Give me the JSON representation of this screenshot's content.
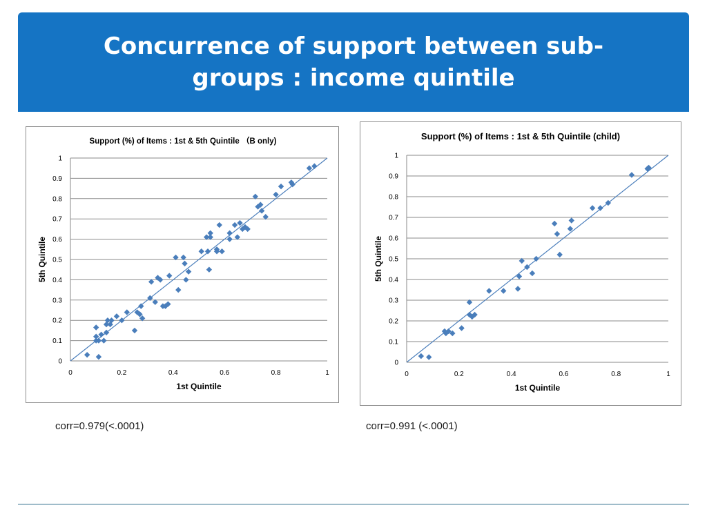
{
  "slide": {
    "title": "Concurrence of support between sub-groups : income quintile",
    "corr_left": "corr=0.979(<.0001)",
    "corr_right": "corr=0.991 (<.0001)"
  },
  "chart_data": [
    {
      "type": "scatter",
      "title": "Support (%) of Items : 1st & 5th Quintile （B only)",
      "xlabel": "1st Quintile",
      "ylabel": "5th Quintile",
      "xlim": [
        0,
        1
      ],
      "ylim": [
        0,
        1
      ],
      "x_ticks": [
        "0",
        "0.2",
        "0.4",
        "0.6",
        "0.8",
        "1"
      ],
      "y_ticks": [
        "0",
        "0.1",
        "0.2",
        "0.3",
        "0.4",
        "0.5",
        "0.6",
        "0.7",
        "0.8",
        "0.9",
        "1"
      ],
      "grid": true,
      "diagonal_line": true,
      "series": [
        {
          "points": [
            [
              0.065,
              0.03
            ],
            [
              0.1,
              0.1
            ],
            [
              0.11,
              0.1
            ],
            [
              0.12,
              0.13
            ],
            [
              0.13,
              0.1
            ],
            [
              0.1,
              0.12
            ],
            [
              0.1,
              0.165
            ],
            [
              0.11,
              0.02
            ],
            [
              0.14,
              0.14
            ],
            [
              0.14,
              0.18
            ],
            [
              0.145,
              0.2
            ],
            [
              0.155,
              0.18
            ],
            [
              0.16,
              0.2
            ],
            [
              0.18,
              0.22
            ],
            [
              0.2,
              0.2
            ],
            [
              0.22,
              0.24
            ],
            [
              0.25,
              0.15
            ],
            [
              0.26,
              0.24
            ],
            [
              0.27,
              0.23
            ],
            [
              0.275,
              0.27
            ],
            [
              0.28,
              0.21
            ],
            [
              0.31,
              0.31
            ],
            [
              0.315,
              0.39
            ],
            [
              0.33,
              0.29
            ],
            [
              0.34,
              0.41
            ],
            [
              0.35,
              0.4
            ],
            [
              0.36,
              0.27
            ],
            [
              0.37,
              0.27
            ],
            [
              0.38,
              0.28
            ],
            [
              0.385,
              0.42
            ],
            [
              0.41,
              0.51
            ],
            [
              0.42,
              0.35
            ],
            [
              0.44,
              0.51
            ],
            [
              0.445,
              0.48
            ],
            [
              0.45,
              0.4
            ],
            [
              0.46,
              0.44
            ],
            [
              0.51,
              0.54
            ],
            [
              0.53,
              0.61
            ],
            [
              0.535,
              0.54
            ],
            [
              0.54,
              0.45
            ],
            [
              0.545,
              0.61
            ],
            [
              0.545,
              0.63
            ],
            [
              0.57,
              0.55
            ],
            [
              0.57,
              0.54
            ],
            [
              0.58,
              0.67
            ],
            [
              0.59,
              0.54
            ],
            [
              0.62,
              0.6
            ],
            [
              0.62,
              0.63
            ],
            [
              0.64,
              0.67
            ],
            [
              0.65,
              0.61
            ],
            [
              0.66,
              0.68
            ],
            [
              0.67,
              0.65
            ],
            [
              0.68,
              0.66
            ],
            [
              0.69,
              0.65
            ],
            [
              0.72,
              0.81
            ],
            [
              0.73,
              0.76
            ],
            [
              0.74,
              0.77
            ],
            [
              0.745,
              0.74
            ],
            [
              0.76,
              0.71
            ],
            [
              0.8,
              0.82
            ],
            [
              0.82,
              0.86
            ],
            [
              0.86,
              0.88
            ],
            [
              0.865,
              0.87
            ],
            [
              0.93,
              0.95
            ],
            [
              0.95,
              0.96
            ]
          ]
        }
      ]
    },
    {
      "type": "scatter",
      "title": "Support (%) of Items : 1st & 5th Quintile   (child)",
      "xlabel": "1st Quintile",
      "ylabel": "5th Quintile",
      "xlim": [
        0,
        1
      ],
      "ylim": [
        0,
        1
      ],
      "x_ticks": [
        "0",
        "0.2",
        "0.4",
        "0.6",
        "0.8",
        "1"
      ],
      "y_ticks": [
        "0",
        "0.1",
        "0.2",
        "0.3",
        "0.4",
        "0.5",
        "0.6",
        "0.7",
        "0.8",
        "0.9",
        "1"
      ],
      "grid": true,
      "diagonal_line": true,
      "series": [
        {
          "points": [
            [
              0.055,
              0.03
            ],
            [
              0.085,
              0.025
            ],
            [
              0.145,
              0.15
            ],
            [
              0.15,
              0.14
            ],
            [
              0.16,
              0.15
            ],
            [
              0.175,
              0.14
            ],
            [
              0.21,
              0.165
            ],
            [
              0.24,
              0.29
            ],
            [
              0.24,
              0.23
            ],
            [
              0.25,
              0.22
            ],
            [
              0.26,
              0.23
            ],
            [
              0.315,
              0.345
            ],
            [
              0.37,
              0.345
            ],
            [
              0.425,
              0.355
            ],
            [
              0.43,
              0.415
            ],
            [
              0.44,
              0.49
            ],
            [
              0.46,
              0.46
            ],
            [
              0.48,
              0.43
            ],
            [
              0.495,
              0.5
            ],
            [
              0.565,
              0.67
            ],
            [
              0.575,
              0.62
            ],
            [
              0.585,
              0.52
            ],
            [
              0.625,
              0.645
            ],
            [
              0.63,
              0.685
            ],
            [
              0.71,
              0.745
            ],
            [
              0.74,
              0.745
            ],
            [
              0.77,
              0.77
            ],
            [
              0.86,
              0.905
            ],
            [
              0.92,
              0.935
            ],
            [
              0.925,
              0.94
            ]
          ]
        }
      ]
    }
  ]
}
